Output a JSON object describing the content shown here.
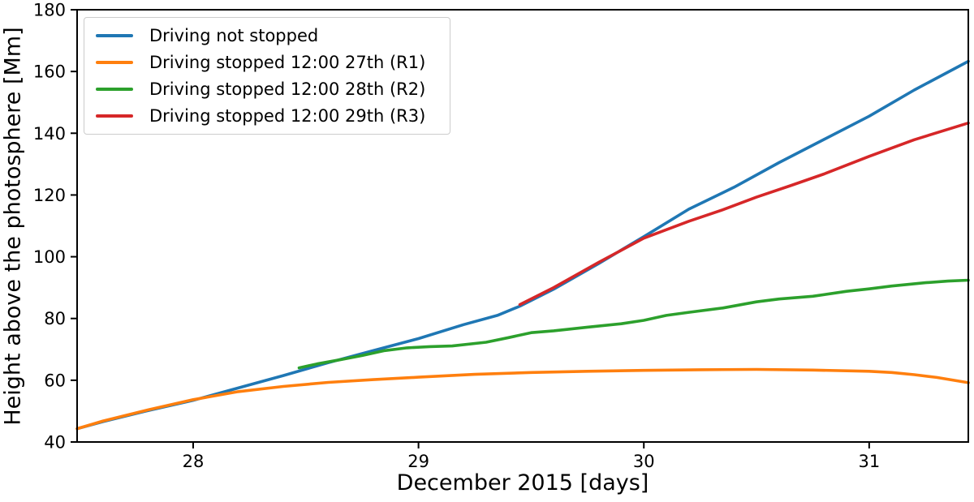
{
  "chart_data": {
    "type": "line",
    "title": "",
    "xlabel": "December 2015 [days]",
    "ylabel": "Height above the photosphere [Mm]",
    "xlim": [
      27.485,
      31.44
    ],
    "ylim": [
      40,
      180
    ],
    "xticks": [
      28,
      29,
      30,
      31
    ],
    "yticks": [
      40,
      60,
      80,
      100,
      120,
      140,
      160,
      180
    ],
    "grid": false,
    "legend_position": "upper left",
    "axis_color": "#000000",
    "series": [
      {
        "name": "Driving not stopped",
        "color": "#1f77b4",
        "points": [
          [
            27.485,
            44.3
          ],
          [
            27.6,
            46.6
          ],
          [
            27.8,
            50.2
          ],
          [
            28.0,
            53.5
          ],
          [
            28.2,
            57.5
          ],
          [
            28.4,
            61.5
          ],
          [
            28.6,
            65.7
          ],
          [
            28.8,
            69.6
          ],
          [
            29.0,
            73.5
          ],
          [
            29.2,
            78.0
          ],
          [
            29.35,
            81.0
          ],
          [
            29.45,
            84.0
          ],
          [
            29.6,
            89.5
          ],
          [
            29.8,
            97.8
          ],
          [
            30.0,
            106.5
          ],
          [
            30.2,
            115.4
          ],
          [
            30.4,
            122.5
          ],
          [
            30.6,
            130.5
          ],
          [
            30.8,
            138.0
          ],
          [
            31.0,
            145.5
          ],
          [
            31.2,
            154.0
          ],
          [
            31.44,
            163.3
          ]
        ]
      },
      {
        "name": "Driving stopped 12:00 27th (R1)",
        "color": "#ff7f0e",
        "points": [
          [
            27.485,
            44.3
          ],
          [
            27.6,
            46.8
          ],
          [
            27.8,
            50.4
          ],
          [
            28.0,
            53.7
          ],
          [
            28.2,
            56.3
          ],
          [
            28.4,
            58.0
          ],
          [
            28.6,
            59.3
          ],
          [
            28.8,
            60.2
          ],
          [
            29.0,
            61.0
          ],
          [
            29.25,
            61.9
          ],
          [
            29.5,
            62.5
          ],
          [
            29.75,
            62.9
          ],
          [
            30.0,
            63.2
          ],
          [
            30.25,
            63.4
          ],
          [
            30.5,
            63.5
          ],
          [
            30.75,
            63.3
          ],
          [
            31.0,
            62.9
          ],
          [
            31.1,
            62.5
          ],
          [
            31.2,
            61.8
          ],
          [
            31.3,
            60.9
          ],
          [
            31.44,
            59.2
          ]
        ]
      },
      {
        "name": "Driving stopped 12:00 28th (R2)",
        "color": "#2ca02c",
        "points": [
          [
            28.47,
            64.0
          ],
          [
            28.55,
            65.3
          ],
          [
            28.65,
            66.6
          ],
          [
            28.75,
            68.0
          ],
          [
            28.85,
            69.6
          ],
          [
            28.95,
            70.5
          ],
          [
            29.05,
            70.9
          ],
          [
            29.15,
            71.1
          ],
          [
            29.3,
            72.3
          ],
          [
            29.4,
            73.8
          ],
          [
            29.5,
            75.4
          ],
          [
            29.6,
            76.0
          ],
          [
            29.75,
            77.2
          ],
          [
            29.9,
            78.3
          ],
          [
            30.0,
            79.4
          ],
          [
            30.1,
            81.0
          ],
          [
            30.2,
            82.0
          ],
          [
            30.35,
            83.4
          ],
          [
            30.5,
            85.4
          ],
          [
            30.6,
            86.3
          ],
          [
            30.75,
            87.2
          ],
          [
            30.9,
            88.8
          ],
          [
            31.0,
            89.6
          ],
          [
            31.1,
            90.5
          ],
          [
            31.25,
            91.6
          ],
          [
            31.35,
            92.1
          ],
          [
            31.44,
            92.4
          ]
        ]
      },
      {
        "name": "Driving stopped 12:00 29th (R3)",
        "color": "#d62728",
        "points": [
          [
            29.45,
            84.5
          ],
          [
            29.6,
            90.0
          ],
          [
            29.8,
            98.2
          ],
          [
            30.0,
            106.0
          ],
          [
            30.2,
            111.5
          ],
          [
            30.35,
            115.2
          ],
          [
            30.5,
            119.3
          ],
          [
            30.65,
            123.0
          ],
          [
            30.8,
            126.8
          ],
          [
            31.0,
            132.5
          ],
          [
            31.2,
            137.9
          ],
          [
            31.44,
            143.3
          ]
        ]
      }
    ]
  }
}
